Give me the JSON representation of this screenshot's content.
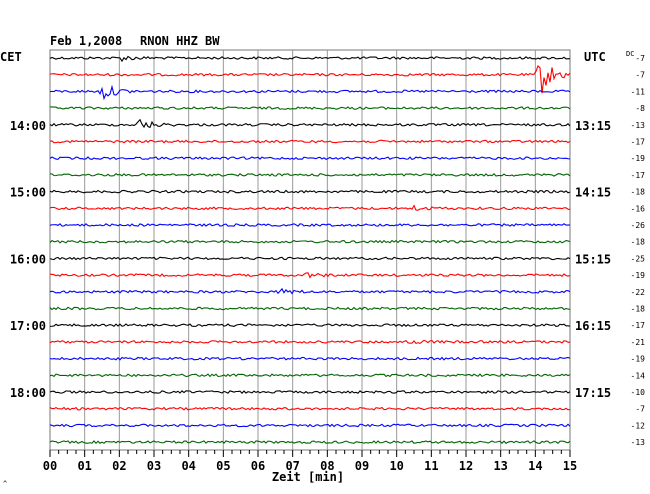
{
  "header": {
    "date": "Feb 1,2008",
    "station": "RNON HHZ BW"
  },
  "left_zone": "CET",
  "right_zone": "UTC",
  "dc_label": "DC",
  "corner_mark": "^",
  "chart_data": {
    "type": "line",
    "title": "Feb 1,2008   RNON HHZ BW",
    "xlabel": "Zeit [min]",
    "xlim": [
      0,
      15
    ],
    "x_ticks": [
      "00",
      "01",
      "02",
      "03",
      "04",
      "05",
      "06",
      "07",
      "08",
      "09",
      "10",
      "11",
      "12",
      "13",
      "14",
      "15"
    ],
    "minor_tick_step_min": 0.25,
    "grid": true,
    "trace_colors": [
      "#000000",
      "#ff0000",
      "#0000ff",
      "#006400"
    ],
    "left_hour_labels": [
      {
        "trace": 4,
        "label": "14:00"
      },
      {
        "trace": 8,
        "label": "15:00"
      },
      {
        "trace": 12,
        "label": "16:00"
      },
      {
        "trace": 16,
        "label": "17:00"
      },
      {
        "trace": 20,
        "label": "18:00"
      }
    ],
    "right_hour_labels": [
      {
        "trace": 4,
        "label": "13:15"
      },
      {
        "trace": 8,
        "label": "14:15"
      },
      {
        "trace": 12,
        "label": "15:15"
      },
      {
        "trace": 16,
        "label": "16:15"
      },
      {
        "trace": 20,
        "label": "17:15"
      }
    ],
    "dc_offsets": [
      -7,
      -7,
      -11,
      -8,
      -13,
      -17,
      -19,
      -17,
      -18,
      -16,
      -26,
      -18,
      -25,
      -19,
      -22,
      -18,
      -17,
      -21,
      -19,
      -14,
      -10,
      -7,
      -12,
      -13
    ],
    "events": [
      {
        "trace": 0,
        "minute": 2.1,
        "amplitude": 0.35
      },
      {
        "trace": 1,
        "minute": 14.15,
        "amplitude": 3.0
      },
      {
        "trace": 2,
        "minute": 1.55,
        "amplitude": 1.1
      },
      {
        "trace": 4,
        "minute": 2.6,
        "amplitude": 0.8
      },
      {
        "trace": 9,
        "minute": 10.5,
        "amplitude": 0.3
      },
      {
        "trace": 13,
        "minute": 7.4,
        "amplitude": 0.3
      },
      {
        "trace": 14,
        "minute": 6.7,
        "amplitude": 0.35
      },
      {
        "trace": 17,
        "minute": 10.4,
        "amplitude": 0.3
      }
    ]
  }
}
